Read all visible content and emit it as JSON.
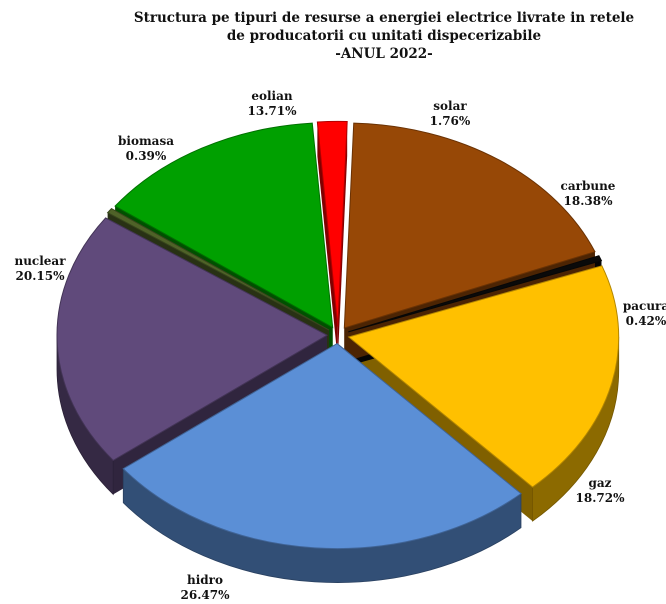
{
  "chart_data": {
    "type": "pie",
    "title_lines": [
      "Structura pe tipuri de resurse a energiei electrice livrate in retele",
      "de producatorii cu unitati dispecerizabile",
      "-ANUL 2022-"
    ],
    "slices": [
      {
        "name": "carbune",
        "value": 18.38,
        "display": "18.38%",
        "color": "#974806"
      },
      {
        "name": "pacura",
        "value": 0.42,
        "display": "0.42%",
        "color": "#0a0a0a"
      },
      {
        "name": "gaz",
        "value": 18.72,
        "display": "18.72%",
        "color": "#ffc000"
      },
      {
        "name": "hidro",
        "value": 26.47,
        "display": "26.47%",
        "color": "#5b8fd6"
      },
      {
        "name": "nuclear",
        "value": 20.15,
        "display": "20.15%",
        "color": "#604a7b"
      },
      {
        "name": "biomasa",
        "value": 0.39,
        "display": "0.39%",
        "color": "#4f6228"
      },
      {
        "name": "eolian",
        "value": 13.71,
        "display": "13.71%",
        "color": "#00a000"
      },
      {
        "name": "solar",
        "value": 1.76,
        "display": "1.76%",
        "color": "#ff0000"
      }
    ],
    "legend": "none",
    "style": "3d-exploded"
  }
}
